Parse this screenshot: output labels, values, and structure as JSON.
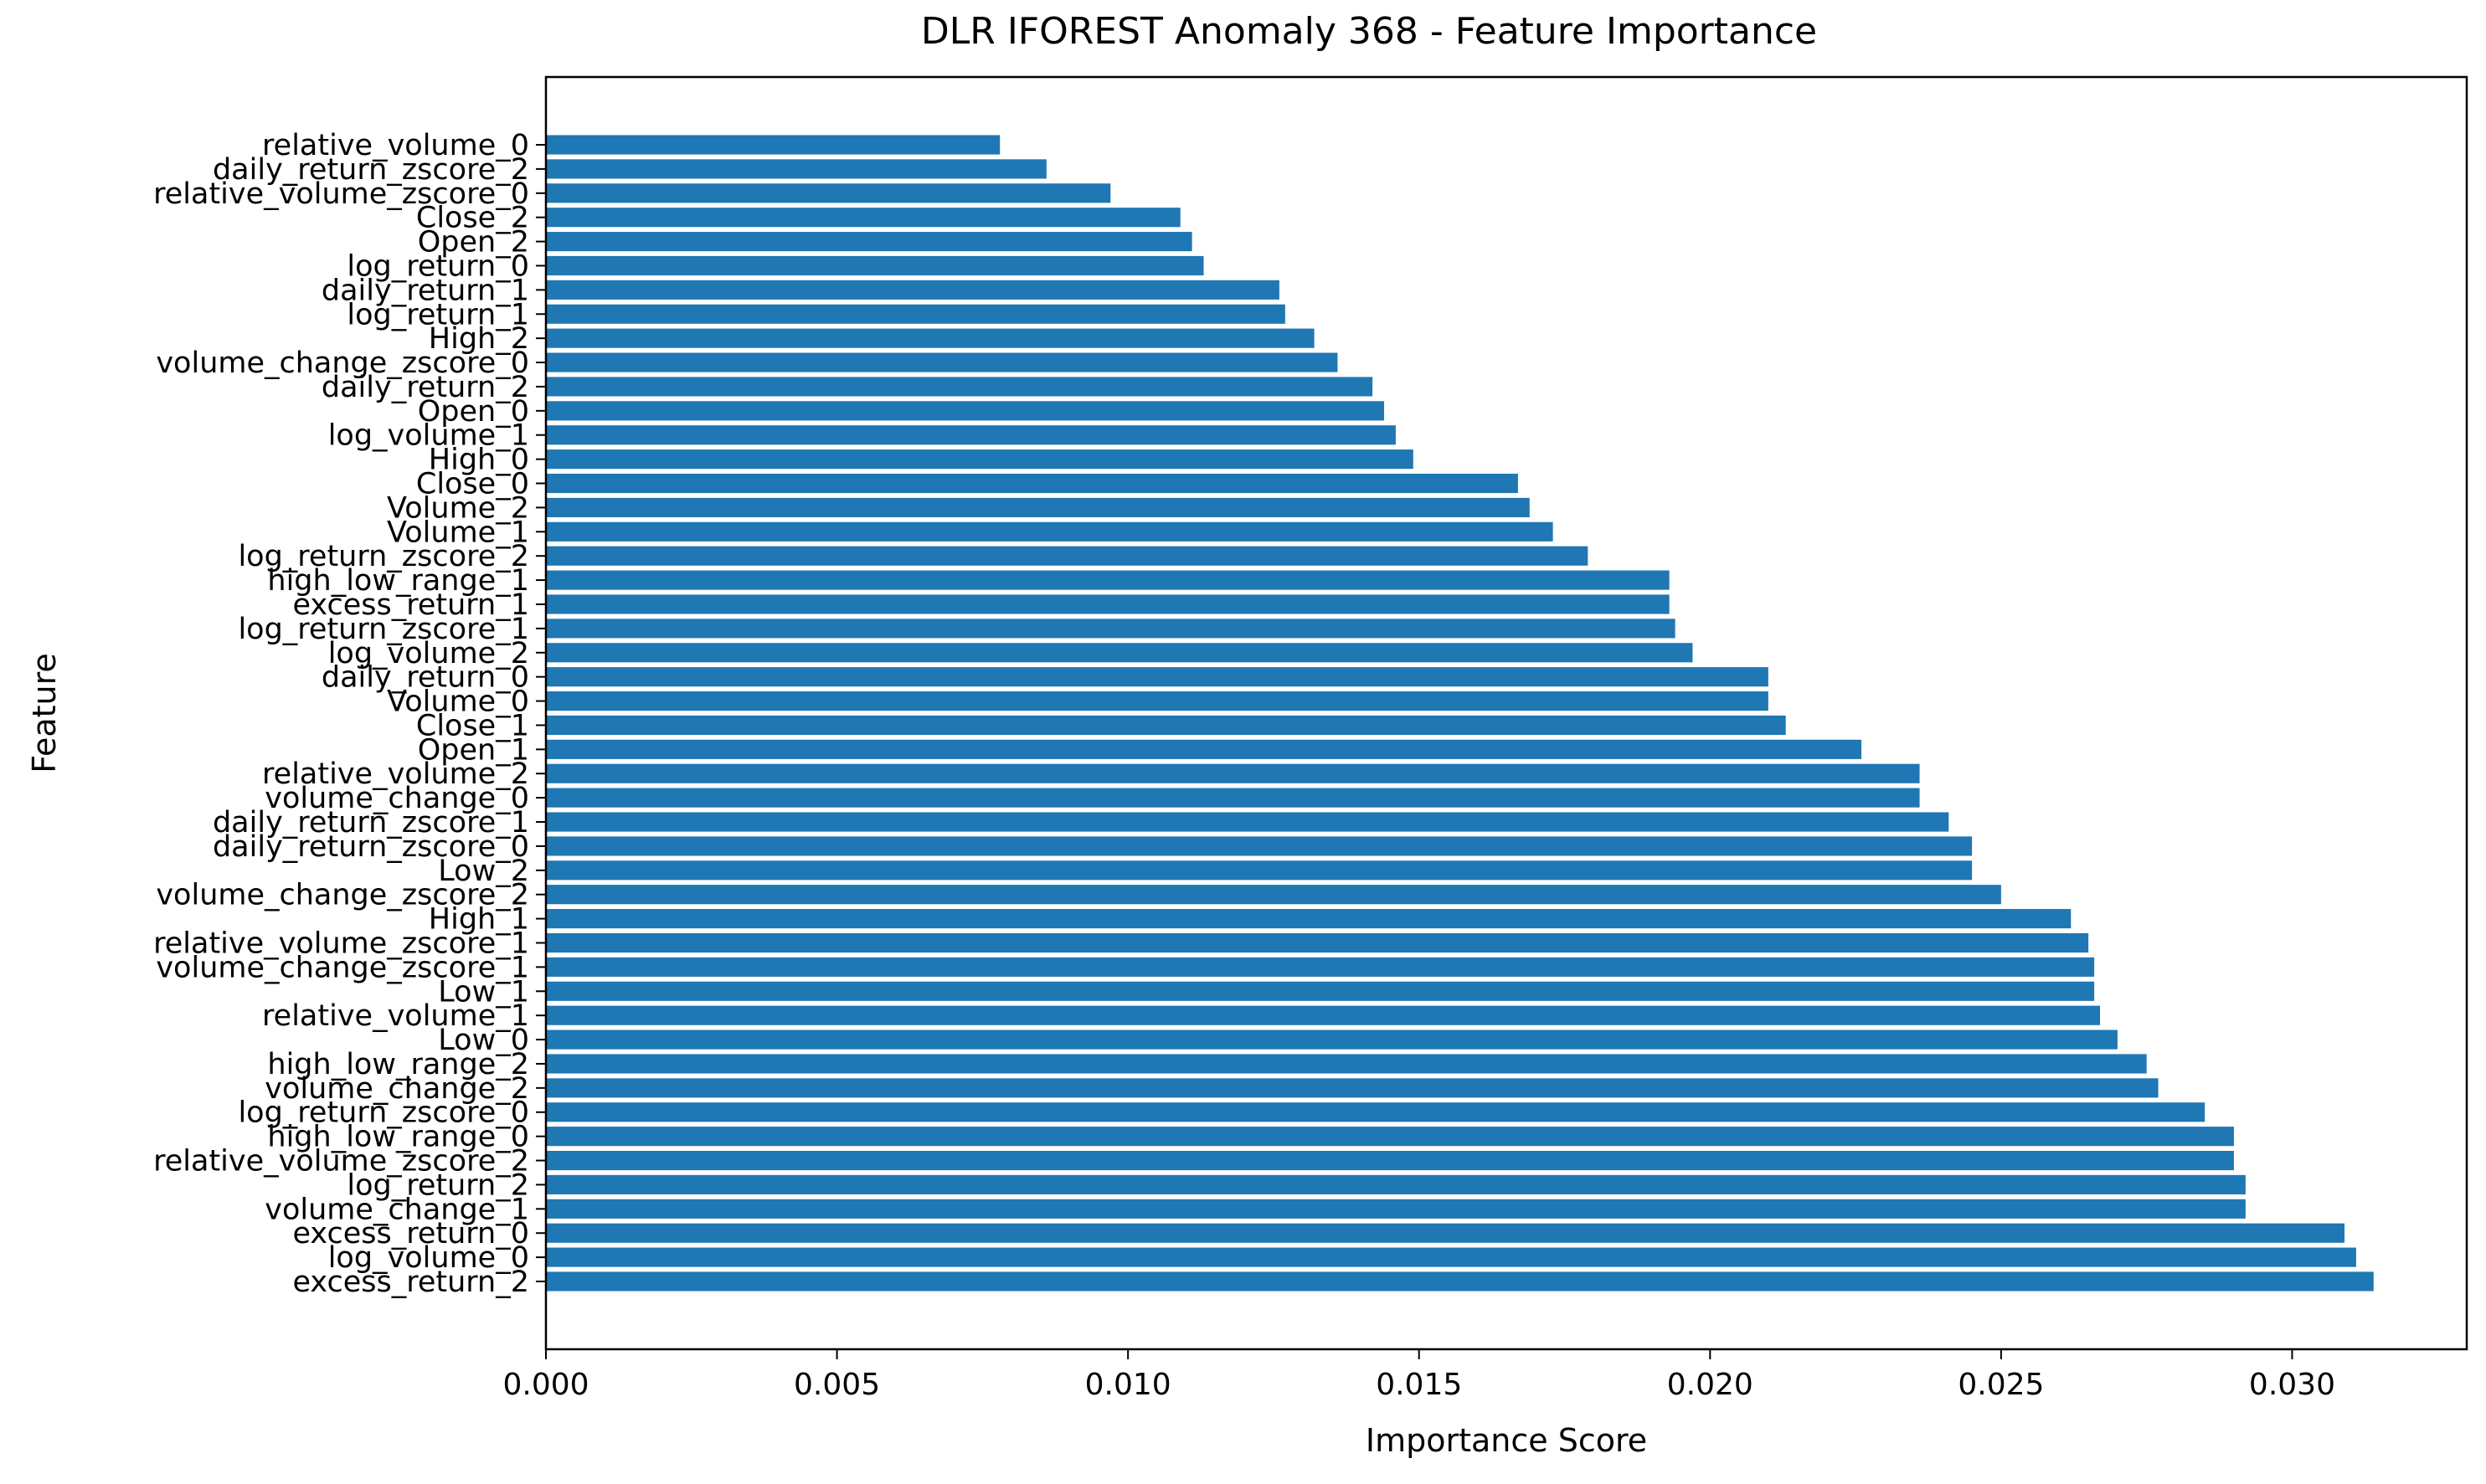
{
  "chart_data": {
    "type": "bar",
    "orientation": "horizontal",
    "title": "DLR IFOREST Anomaly 368 - Feature Importance",
    "xlabel": "Importance Score",
    "ylabel": "Feature",
    "xlim": [
      0,
      0.033
    ],
    "xticks": [
      0.0,
      0.005,
      0.01,
      0.015,
      0.02,
      0.025,
      0.03
    ],
    "xtick_labels": [
      "0.000",
      "0.005",
      "0.010",
      "0.015",
      "0.020",
      "0.025",
      "0.030"
    ],
    "grid": false,
    "bar_color": "#1f77b4",
    "categories": [
      "relative_volume_0",
      "daily_return_zscore_2",
      "relative_volume_zscore_0",
      "Close_2",
      "Open_2",
      "log_return_0",
      "daily_return_1",
      "log_return_1",
      "High_2",
      "volume_change_zscore_0",
      "daily_return_2",
      "Open_0",
      "log_volume_1",
      "High_0",
      "Close_0",
      "Volume_2",
      "Volume_1",
      "log_return_zscore_2",
      "high_low_range_1",
      "excess_return_1",
      "log_return_zscore_1",
      "log_volume_2",
      "daily_return_0",
      "Volume_0",
      "Close_1",
      "Open_1",
      "relative_volume_2",
      "volume_change_0",
      "daily_return_zscore_1",
      "daily_return_zscore_0",
      "Low_2",
      "volume_change_zscore_2",
      "High_1",
      "relative_volume_zscore_1",
      "volume_change_zscore_1",
      "Low_1",
      "relative_volume_1",
      "Low_0",
      "high_low_range_2",
      "volume_change_2",
      "log_return_zscore_0",
      "high_low_range_0",
      "relative_volume_zscore_2",
      "log_return_2",
      "volume_change_1",
      "excess_return_0",
      "log_volume_0",
      "excess_return_2"
    ],
    "values": [
      0.0078,
      0.0086,
      0.0097,
      0.0109,
      0.0111,
      0.0113,
      0.0126,
      0.0127,
      0.0132,
      0.0136,
      0.0142,
      0.0144,
      0.0146,
      0.0149,
      0.0167,
      0.0169,
      0.0173,
      0.0179,
      0.0193,
      0.0193,
      0.0194,
      0.0197,
      0.021,
      0.021,
      0.0213,
      0.0226,
      0.0236,
      0.0236,
      0.0241,
      0.0245,
      0.0245,
      0.025,
      0.0262,
      0.0265,
      0.0266,
      0.0266,
      0.0267,
      0.027,
      0.0275,
      0.0277,
      0.0285,
      0.029,
      0.029,
      0.0292,
      0.0292,
      0.0309,
      0.0311,
      0.0314
    ]
  }
}
